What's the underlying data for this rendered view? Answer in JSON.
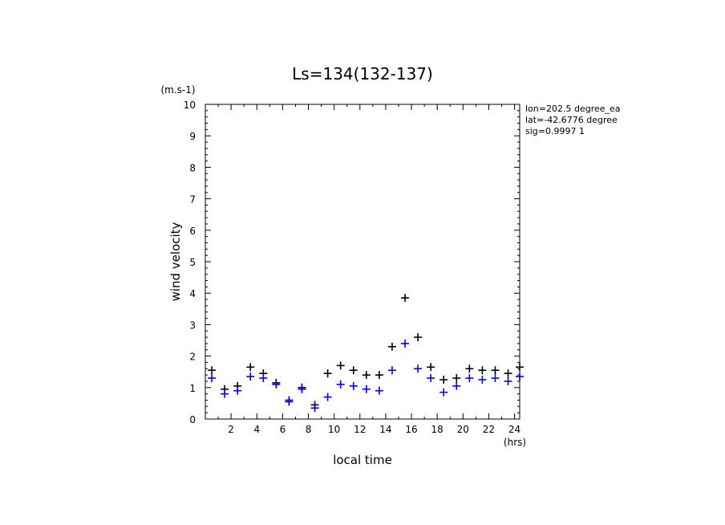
{
  "chart_data": {
    "type": "scatter",
    "title": "Ls=134(132-137)",
    "ylabel": "wind velocity",
    "yunit": "(m.s-1)",
    "xlabel": "local time",
    "xunit": "(hrs)",
    "xlim": [
      0,
      24.4
    ],
    "ylim": [
      0,
      10
    ],
    "xticks": [
      2,
      4,
      6,
      8,
      10,
      12,
      14,
      16,
      18,
      20,
      22,
      24
    ],
    "yticks": [
      0,
      1,
      2,
      3,
      4,
      5,
      6,
      7,
      8,
      9,
      10
    ],
    "info": [
      "lon=202.5 degree_ea",
      "lat=-42.6776 degree",
      "sig=0.9997 1"
    ],
    "marker": "plus",
    "x": [
      0.5,
      1.5,
      2.5,
      3.5,
      4.5,
      5.5,
      6.5,
      7.5,
      8.5,
      9.5,
      10.5,
      11.5,
      12.5,
      13.5,
      14.5,
      15.5,
      16.5,
      17.5,
      18.5,
      19.5,
      20.5,
      21.5,
      22.5,
      23.5,
      24.5
    ],
    "series": [
      {
        "color": "#000000",
        "values": [
          1.55,
          0.95,
          1.05,
          1.65,
          1.45,
          1.15,
          0.55,
          1.0,
          0.45,
          1.45,
          1.7,
          1.55,
          1.4,
          1.4,
          2.3,
          3.85,
          2.6,
          1.65,
          1.25,
          1.3,
          1.6,
          1.55,
          1.55,
          1.45,
          1.65
        ]
      },
      {
        "color": "#0000ff",
        "values": [
          1.3,
          0.8,
          0.9,
          1.35,
          1.3,
          1.1,
          0.6,
          0.95,
          0.35,
          0.7,
          1.1,
          1.05,
          0.95,
          0.9,
          1.55,
          2.4,
          1.6,
          1.3,
          0.85,
          1.05,
          1.3,
          1.25,
          1.3,
          1.2,
          1.35
        ]
      }
    ]
  }
}
